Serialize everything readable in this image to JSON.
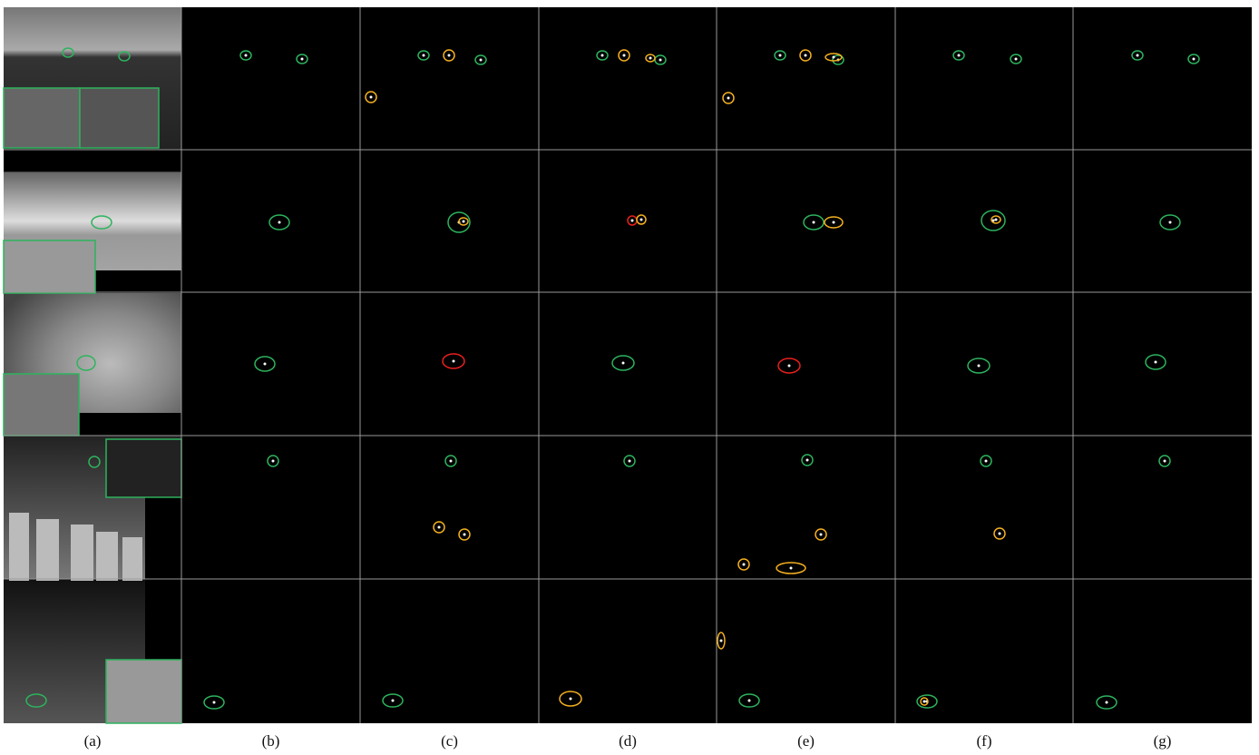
{
  "figure": {
    "columns": [
      "(a)",
      "(b)",
      "(c)",
      "(d)",
      "(e)",
      "(f)",
      "(g)"
    ]
  }
}
